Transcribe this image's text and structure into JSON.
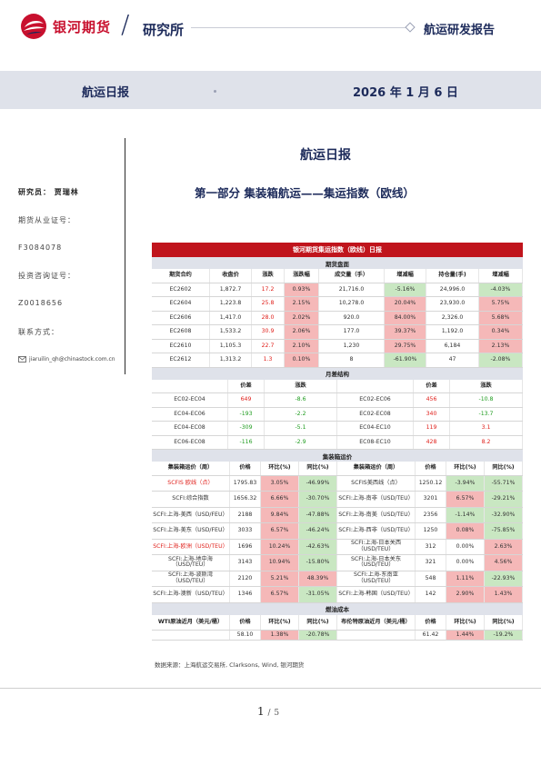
{
  "header": {
    "company": "银河期货",
    "department": "研究所",
    "report_type": "航运研发报告"
  },
  "banner": {
    "title": "航运日报",
    "date": "2026 年 1 月 6 日"
  },
  "sidebar": {
    "researcher": "研究员：  贾瑞林",
    "license_label": "期货从业证号：",
    "license": "F3084078",
    "advisory_label": "投资咨询证号：",
    "advisory": "Z0018656",
    "contact_label": "联系方式：",
    "email": "jiaruilin_qh@chinastock.com.cn"
  },
  "doc_title": "航运日报",
  "section_title": "第一部分  集装箱航运——集运指数（欧线）",
  "table": {
    "title": "银河期货集运指数（欧线）日报",
    "futures": {
      "label": "期货盘面",
      "headers": [
        "期货合约",
        "收盘价",
        "涨跌",
        "涨跌幅",
        "成交量（手）",
        "增减幅",
        "持仓量(手)",
        "增减幅"
      ],
      "rows": [
        [
          "EC2602",
          "1,872.7",
          "17.2",
          "0.93%",
          "21,716.0",
          "-5.16%",
          "24,996.0",
          "-4.03%"
        ],
        [
          "EC2604",
          "1,223.8",
          "25.8",
          "2.15%",
          "10,278.0",
          "20.04%",
          "23,930.0",
          "5.75%"
        ],
        [
          "EC2606",
          "1,417.0",
          "28.0",
          "2.02%",
          "920.0",
          "84.00%",
          "2,326.0",
          "5.68%"
        ],
        [
          "EC2608",
          "1,533.2",
          "30.9",
          "2.06%",
          "177.0",
          "39.37%",
          "1,192.0",
          "0.34%"
        ],
        [
          "EC2610",
          "1,105.3",
          "22.7",
          "2.10%",
          "1,230",
          "29.75%",
          "6,184",
          "2.13%"
        ],
        [
          "EC2612",
          "1,313.2",
          "1.3",
          "0.10%",
          "8",
          "-61.90%",
          "47",
          "-2.08%"
        ]
      ]
    },
    "spread": {
      "label": "月差结构",
      "headers": [
        "",
        "价差",
        "涨跌",
        "",
        "价差",
        "涨跌"
      ],
      "rows": [
        [
          "EC02-EC04",
          "649",
          "-8.6",
          "EC02-EC06",
          "456",
          "-10.8"
        ],
        [
          "EC04-EC06",
          "-193",
          "-2.2",
          "EC02-EC08",
          "340",
          "-13.7"
        ],
        [
          "EC04-EC08",
          "-309",
          "-5.1",
          "EC04-EC10",
          "119",
          "3.1"
        ],
        [
          "EC06-EC08",
          "-116",
          "-2.9",
          "EC08-EC10",
          "428",
          "8.2"
        ]
      ]
    },
    "freight": {
      "label": "集装箱运价",
      "headers": [
        "集装箱运价（周）",
        "价格",
        "环比(%)",
        "同比(%)",
        "集装箱运价（周）",
        "价格",
        "环比(%)",
        "同比(%)"
      ],
      "rows": [
        [
          "SCFIS 欧线（点）",
          "1795.83",
          "3.05%",
          "-46.99%",
          "SCFIS美西线（点）",
          "1250.12",
          "-3.94%",
          "-55.71%"
        ],
        [
          "SCFI:综合指数",
          "1656.32",
          "6.66%",
          "-30.70%",
          "SCFI:上海-南非（USD/TEU）",
          "3201",
          "6.57%",
          "-29.21%"
        ],
        [
          "SCFI:上海-美西（USD/FEU）",
          "2188",
          "9.84%",
          "-47.88%",
          "SCFI:上海-南美（USD/TEU）",
          "2356",
          "-1.14%",
          "-32.90%"
        ],
        [
          "SCFI:上海-美东（USD/FEU）",
          "3033",
          "6.57%",
          "-46.24%",
          "SCFI:上海-西非（USD/TEU）",
          "1250",
          "0.08%",
          "-75.85%"
        ],
        [
          "SCFI:上海-欧洲（USD/TEU）",
          "1696",
          "10.24%",
          "-42.63%",
          "SCFI:上海-日本关西（USD/TEU）",
          "312",
          "0.00%",
          "2.63%"
        ],
        [
          "SCFI:上海-地中海（USD/TEU）",
          "3143",
          "10.94%",
          "-15.80%",
          "SCFI:上海-日本关东（USD/TEU）",
          "321",
          "0.00%",
          "4.56%"
        ],
        [
          "SCFI:上海-波斯湾（USD/TEU）",
          "2120",
          "5.21%",
          "48.39%",
          "SCFI:上海-东南亚（USD/TEU）",
          "548",
          "1.11%",
          "-22.93%"
        ],
        [
          "SCFI:上海-澳新（USD/TEU）",
          "1346",
          "6.57%",
          "-31.05%",
          "SCFI:上海-韩国（USD/TEU）",
          "142",
          "2.90%",
          "1.43%"
        ]
      ]
    },
    "fuel": {
      "label": "燃油成本",
      "headers": [
        "WTI原油近月（美元/桶）",
        "价格",
        "环比(%)",
        "同比(%)",
        "布伦特原油近月（美元/桶）",
        "价格",
        "环比(%)",
        "同比(%)"
      ],
      "row": [
        "",
        "58.10",
        "1.38%",
        "-20.78%",
        "",
        "61.42",
        "1.44%",
        "-19.2%"
      ]
    }
  },
  "source": "数据来源：上海航运交易所, Clarksons, Wind, 银河期货",
  "pagination": {
    "current": "1",
    "separator": "/",
    "total": "5"
  },
  "colors": {
    "brand_red": "#c0141c",
    "navy": "#1c2a5a",
    "up_red": "#f5b8b8",
    "down_green": "#c9e7c2"
  }
}
